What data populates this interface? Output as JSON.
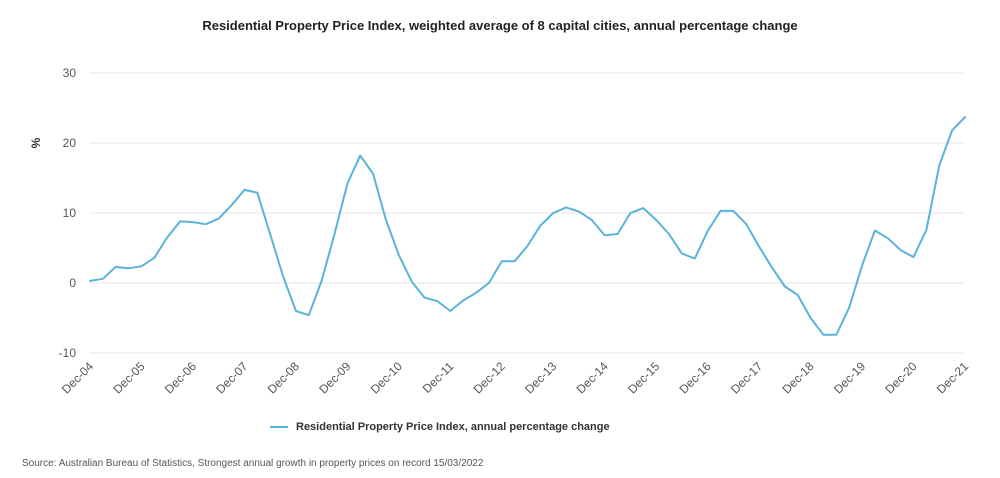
{
  "chart_data": {
    "type": "line",
    "title": "Residential Property Price Index, weighted average of 8 capital cities, annual percentage change",
    "ylabel": "%",
    "xlabel": "",
    "ylim": [
      -10,
      30
    ],
    "yticks": [
      -10,
      0,
      10,
      20,
      30
    ],
    "grid": true,
    "legend_position": "bottom",
    "x_tick_labels": [
      "Dec-04",
      "Dec-05",
      "Dec-06",
      "Dec-07",
      "Dec-08",
      "Dec-09",
      "Dec-10",
      "Dec-11",
      "Dec-12",
      "Dec-13",
      "Dec-14",
      "Dec-15",
      "Dec-16",
      "Dec-17",
      "Dec-18",
      "Dec-19",
      "Dec-20",
      "Dec-21"
    ],
    "x": [
      "Dec-04",
      "Mar-05",
      "Jun-05",
      "Sep-05",
      "Dec-05",
      "Mar-06",
      "Jun-06",
      "Sep-06",
      "Dec-06",
      "Mar-07",
      "Jun-07",
      "Sep-07",
      "Dec-07",
      "Mar-08",
      "Jun-08",
      "Sep-08",
      "Dec-08",
      "Mar-09",
      "Jun-09",
      "Sep-09",
      "Dec-09",
      "Mar-10",
      "Jun-10",
      "Sep-10",
      "Dec-10",
      "Mar-11",
      "Jun-11",
      "Sep-11",
      "Dec-11",
      "Mar-12",
      "Jun-12",
      "Sep-12",
      "Dec-12",
      "Mar-13",
      "Jun-13",
      "Sep-13",
      "Dec-13",
      "Mar-14",
      "Jun-14",
      "Sep-14",
      "Dec-14",
      "Mar-15",
      "Jun-15",
      "Sep-15",
      "Dec-15",
      "Mar-16",
      "Jun-16",
      "Sep-16",
      "Dec-16",
      "Mar-17",
      "Jun-17",
      "Sep-17",
      "Dec-17",
      "Mar-18",
      "Jun-18",
      "Sep-18",
      "Dec-18",
      "Mar-19",
      "Jun-19",
      "Sep-19",
      "Dec-19",
      "Mar-20",
      "Jun-20",
      "Sep-20",
      "Dec-20",
      "Mar-21",
      "Jun-21",
      "Sep-21",
      "Dec-21"
    ],
    "series": [
      {
        "name": "Residential Property Price Index, annual percentage change",
        "color": "#5ab3d9",
        "values": [
          0.3,
          0.6,
          2.3,
          2.1,
          2.4,
          3.6,
          6.5,
          8.8,
          8.7,
          8.4,
          9.2,
          11.1,
          13.3,
          12.9,
          7.0,
          1.0,
          -4.0,
          -4.6,
          0.3,
          7.0,
          14.2,
          18.2,
          15.6,
          9.0,
          4.0,
          0.2,
          -2.1,
          -2.6,
          -4.0,
          -2.5,
          -1.4,
          0.0,
          3.1,
          3.1,
          5.3,
          8.2,
          10.0,
          10.8,
          10.2,
          9.0,
          6.8,
          7.0,
          10.0,
          10.7,
          9.0,
          7.0,
          4.2,
          3.5,
          7.4,
          10.3,
          10.3,
          8.4,
          5.2,
          2.2,
          -0.5,
          -1.7,
          -5.0,
          -7.4,
          -7.4,
          -3.5,
          2.5,
          7.5,
          6.4,
          4.7,
          3.7,
          7.6,
          16.8,
          21.8,
          23.7
        ]
      }
    ],
    "source": "Source: Australian Bureau of Statistics, Strongest annual growth in property prices on record 15/03/2022"
  }
}
